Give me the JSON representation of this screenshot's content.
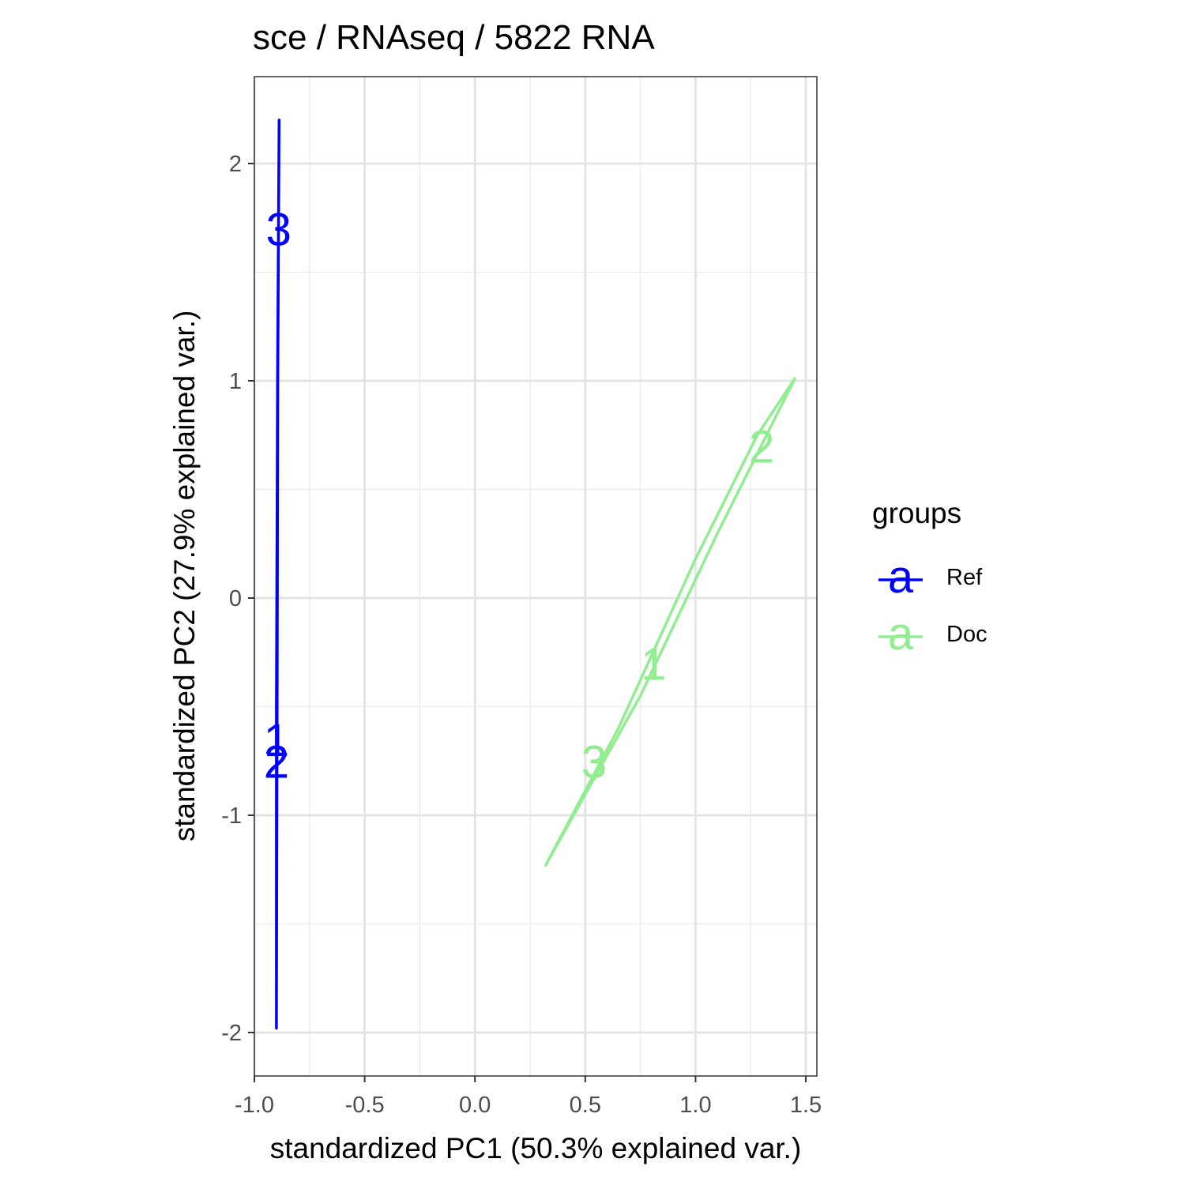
{
  "chart_data": {
    "type": "scatter",
    "title": "sce / RNAseq / 5822  RNA",
    "xlabel": "standardized PC1 (50.3% explained var.)",
    "ylabel": "standardized PC2 (27.9% explained var.)",
    "xlim": [
      -1.0,
      1.55
    ],
    "ylim": [
      -2.2,
      2.4
    ],
    "x_ticks": [
      -1.0,
      -0.5,
      0.0,
      0.5,
      1.0,
      1.5
    ],
    "x_tick_labels": [
      "-1.0",
      "-0.5",
      "0.0",
      "0.5",
      "1.0",
      "1.5"
    ],
    "y_ticks": [
      -2,
      -1,
      0,
      1,
      2
    ],
    "y_tick_labels": [
      "-2",
      "-1",
      "0",
      "1",
      "2"
    ],
    "grid": true,
    "legend": {
      "title": "groups",
      "position": "right",
      "glyph": "a",
      "entries": [
        {
          "name": "Ref",
          "color": "#0000ff"
        },
        {
          "name": "Doc",
          "color": "#90ee90"
        }
      ]
    },
    "series": [
      {
        "name": "Ref",
        "color": "#0000ff",
        "points": [
          {
            "label": "1",
            "x": -0.9,
            "y": -0.65
          },
          {
            "label": "2",
            "x": -0.9,
            "y": -0.75
          },
          {
            "label": "3",
            "x": -0.89,
            "y": 1.7
          }
        ],
        "ellipse": [
          [
            -0.888,
            2.2
          ],
          [
            -0.894,
            1.0
          ],
          [
            -0.897,
            -0.5
          ],
          [
            -0.9,
            -1.98
          ],
          [
            -0.9,
            -0.5
          ],
          [
            -0.895,
            1.0
          ]
        ]
      },
      {
        "name": "Doc",
        "color": "#90ee90",
        "points": [
          {
            "label": "1",
            "x": 0.81,
            "y": -0.3
          },
          {
            "label": "2",
            "x": 1.3,
            "y": 0.7
          },
          {
            "label": "3",
            "x": 0.54,
            "y": -0.75
          }
        ],
        "ellipse": [
          [
            1.45,
            1.01
          ],
          [
            1.1,
            0.3
          ],
          [
            0.75,
            -0.45
          ],
          [
            0.32,
            -1.23
          ],
          [
            0.65,
            -0.6
          ],
          [
            1.0,
            0.18
          ],
          [
            1.28,
            0.75
          ]
        ]
      }
    ]
  }
}
